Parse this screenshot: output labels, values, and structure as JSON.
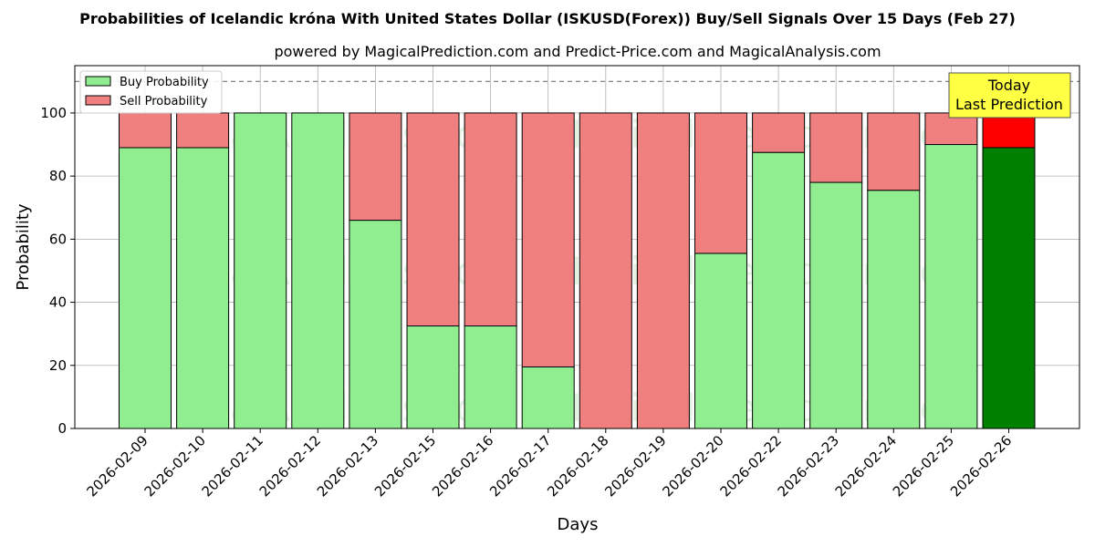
{
  "chart_data": {
    "type": "bar",
    "stacked": true,
    "title": "Probabilities of Icelandic króna With United States Dollar (ISKUSD(Forex)) Buy/Sell Signals Over 15 Days (Feb 27)",
    "subtitle": "powered by MagicalPrediction.com and Predict-Price.com and MagicalAnalysis.com",
    "xlabel": "Days",
    "ylabel": "Probability",
    "ylim": [
      0,
      115
    ],
    "yticks": [
      0,
      20,
      40,
      60,
      80,
      100
    ],
    "grid": true,
    "legend_position": "top-left",
    "threshold_line": 110,
    "categories": [
      "2026-02-09",
      "2026-02-10",
      "2026-02-11",
      "2026-02-12",
      "2026-02-13",
      "2026-02-15",
      "2026-02-16",
      "2026-02-17",
      "2026-02-18",
      "2026-02-19",
      "2026-02-20",
      "2026-02-22",
      "2026-02-23",
      "2026-02-24",
      "2026-02-25",
      "2026-02-26"
    ],
    "series": [
      {
        "name": "Buy Probability",
        "color": "#90ee90",
        "values": [
          89,
          89,
          100,
          100,
          66,
          32.5,
          32.5,
          19.5,
          0,
          0,
          55.5,
          87.5,
          78,
          75.5,
          90,
          89
        ]
      },
      {
        "name": "Sell Probability",
        "color": "#f08080",
        "values": [
          11,
          11,
          0,
          0,
          34,
          67.5,
          67.5,
          80.5,
          100,
          100,
          44.5,
          12.5,
          22,
          24.5,
          10,
          11
        ]
      }
    ],
    "highlight": {
      "index": 15,
      "buy_color": "#008000",
      "sell_color": "#ff0000"
    },
    "annotation": {
      "lines": [
        "Today",
        "Last Prediction"
      ],
      "background": "#ffff44"
    },
    "watermarks": [
      "MagicalAnalysis.com",
      "MagicalPrediction.com"
    ]
  }
}
